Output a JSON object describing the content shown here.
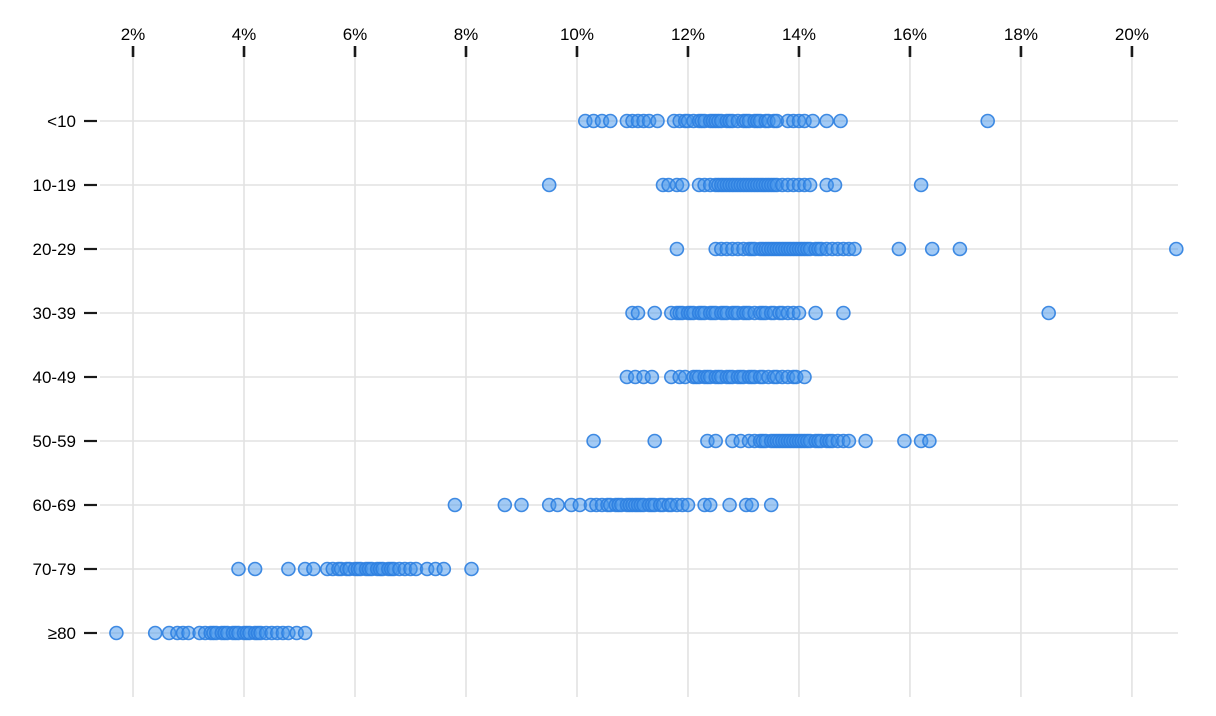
{
  "chart_data": {
    "type": "scatter",
    "subtype": "strip-plot",
    "title": "",
    "xlabel": "",
    "ylabel": "",
    "x_tick_labels": [
      "2%",
      "4%",
      "6%",
      "8%",
      "10%",
      "12%",
      "14%",
      "16%",
      "18%",
      "20%"
    ],
    "x_tick_values": [
      2,
      4,
      6,
      8,
      10,
      12,
      14,
      16,
      18,
      20
    ],
    "xlim": [
      1.405,
      20.83
    ],
    "grid": true,
    "legend": "none",
    "categories": [
      "<10",
      "10-19",
      "20-29",
      "30-39",
      "40-49",
      "50-59",
      "60-69",
      "70-79",
      "≥80"
    ],
    "series": [
      {
        "category": "<10",
        "values": [
          10.15,
          10.3,
          10.45,
          10.6,
          10.9,
          11.0,
          11.1,
          11.2,
          11.3,
          11.45,
          11.75,
          11.85,
          11.95,
          12.0,
          12.1,
          12.2,
          12.25,
          12.3,
          12.4,
          12.45,
          12.5,
          12.55,
          12.6,
          12.7,
          12.75,
          12.8,
          12.9,
          13.0,
          13.05,
          13.1,
          13.2,
          13.25,
          13.3,
          13.4,
          13.45,
          13.55,
          13.6,
          13.8,
          13.9,
          14.0,
          14.1,
          14.25,
          14.5,
          14.75,
          17.4
        ]
      },
      {
        "category": "10-19",
        "values": [
          9.5,
          11.55,
          11.65,
          11.8,
          11.9,
          12.2,
          12.3,
          12.4,
          12.5,
          12.55,
          12.6,
          12.65,
          12.7,
          12.75,
          12.8,
          12.85,
          12.9,
          12.95,
          13.0,
          13.05,
          13.1,
          13.15,
          13.2,
          13.25,
          13.3,
          13.35,
          13.4,
          13.45,
          13.5,
          13.55,
          13.6,
          13.7,
          13.8,
          13.9,
          14.0,
          14.1,
          14.2,
          14.5,
          14.65,
          16.2
        ]
      },
      {
        "category": "20-29",
        "values": [
          11.8,
          12.5,
          12.6,
          12.7,
          12.8,
          12.9,
          13.0,
          13.1,
          13.15,
          13.2,
          13.3,
          13.35,
          13.4,
          13.45,
          13.5,
          13.55,
          13.6,
          13.65,
          13.7,
          13.75,
          13.8,
          13.85,
          13.9,
          13.95,
          14.0,
          14.05,
          14.1,
          14.15,
          14.2,
          14.3,
          14.35,
          14.4,
          14.5,
          14.6,
          14.7,
          14.8,
          14.9,
          15.0,
          15.8,
          16.4,
          16.9,
          20.8
        ]
      },
      {
        "category": "30-39",
        "values": [
          11.0,
          11.1,
          11.4,
          11.7,
          11.8,
          11.85,
          11.9,
          12.0,
          12.05,
          12.1,
          12.2,
          12.25,
          12.3,
          12.4,
          12.45,
          12.5,
          12.6,
          12.65,
          12.7,
          12.8,
          12.85,
          12.9,
          13.0,
          13.05,
          13.1,
          13.2,
          13.3,
          13.35,
          13.4,
          13.5,
          13.55,
          13.65,
          13.7,
          13.8,
          13.9,
          14.0,
          14.3,
          14.8,
          18.5
        ]
      },
      {
        "category": "40-49",
        "values": [
          10.9,
          11.05,
          11.2,
          11.35,
          11.7,
          11.85,
          11.95,
          12.1,
          12.15,
          12.2,
          12.3,
          12.35,
          12.4,
          12.5,
          12.55,
          12.6,
          12.7,
          12.75,
          12.8,
          12.9,
          12.95,
          13.0,
          13.1,
          13.15,
          13.2,
          13.3,
          13.35,
          13.45,
          13.55,
          13.6,
          13.7,
          13.8,
          13.9,
          13.95,
          14.1
        ]
      },
      {
        "category": "50-59",
        "values": [
          10.3,
          11.4,
          12.35,
          12.5,
          12.8,
          12.95,
          13.1,
          13.2,
          13.3,
          13.35,
          13.4,
          13.5,
          13.55,
          13.6,
          13.65,
          13.7,
          13.75,
          13.8,
          13.85,
          13.9,
          13.95,
          14.0,
          14.05,
          14.1,
          14.15,
          14.2,
          14.3,
          14.35,
          14.4,
          14.5,
          14.55,
          14.6,
          14.7,
          14.8,
          14.9,
          15.2,
          15.9,
          16.2,
          16.35
        ]
      },
      {
        "category": "60-69",
        "values": [
          7.8,
          8.7,
          9.0,
          9.5,
          9.65,
          9.9,
          10.05,
          10.25,
          10.35,
          10.45,
          10.55,
          10.6,
          10.7,
          10.75,
          10.8,
          10.9,
          10.95,
          11.0,
          11.05,
          11.1,
          11.15,
          11.2,
          11.3,
          11.35,
          11.4,
          11.5,
          11.55,
          11.65,
          11.7,
          11.8,
          11.9,
          12.0,
          12.3,
          12.4,
          12.75,
          13.05,
          13.15,
          13.5
        ]
      },
      {
        "category": "70-79",
        "values": [
          3.9,
          4.2,
          4.8,
          5.1,
          5.25,
          5.5,
          5.6,
          5.7,
          5.75,
          5.85,
          5.9,
          6.0,
          6.05,
          6.1,
          6.2,
          6.25,
          6.3,
          6.4,
          6.45,
          6.5,
          6.6,
          6.65,
          6.7,
          6.8,
          6.9,
          7.0,
          7.1,
          7.3,
          7.45,
          7.6,
          8.1
        ]
      },
      {
        "category": "≥80",
        "values": [
          1.7,
          2.4,
          2.65,
          2.8,
          2.9,
          3.0,
          3.2,
          3.3,
          3.4,
          3.45,
          3.5,
          3.6,
          3.65,
          3.7,
          3.8,
          3.85,
          3.9,
          4.0,
          4.05,
          4.1,
          4.2,
          4.25,
          4.3,
          4.4,
          4.5,
          4.6,
          4.7,
          4.8,
          4.95,
          5.1
        ]
      }
    ],
    "colors": {
      "point_fill": "#4596ec",
      "point_stroke": "#2e7fe0",
      "gridline": "#e2e2e2",
      "tick": "#1a1a1a",
      "label_text": "#000000",
      "background": "#ffffff"
    }
  }
}
